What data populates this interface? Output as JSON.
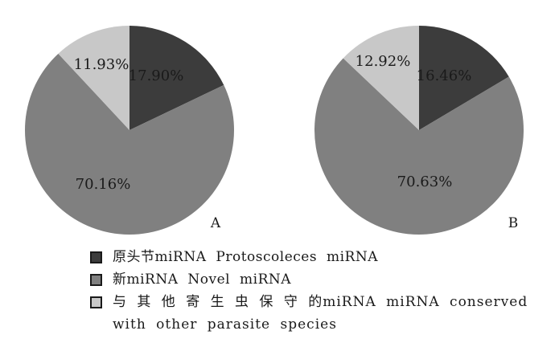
{
  "chart_data": [
    {
      "type": "pie",
      "label": "A",
      "slices": [
        {
          "name": "原头节miRNA Protoscoleces miRNA",
          "value": 17.9,
          "label": "17.90%",
          "color": "#3c3c3c"
        },
        {
          "name": "新miRNA Novel miRNA",
          "value": 70.16,
          "label": "70.16%",
          "color": "#808080"
        },
        {
          "name": "与其他寄生虫保守的miRNA miRNA conserved with other parasite species",
          "value": 11.93,
          "label": "11.93%",
          "color": "#c8c8c8"
        }
      ]
    },
    {
      "type": "pie",
      "label": "B",
      "slices": [
        {
          "name": "原头节miRNA Protoscoleces miRNA",
          "value": 16.46,
          "label": "16.46%",
          "color": "#3c3c3c"
        },
        {
          "name": "新miRNA Novel miRNA",
          "value": 70.63,
          "label": "70.63%",
          "color": "#808080"
        },
        {
          "name": "与其他寄生虫保守的miRNA miRNA conserved with other parasite species",
          "value": 12.92,
          "label": "12.92%",
          "color": "#c8c8c8"
        }
      ]
    }
  ],
  "legend": [
    {
      "text": "原头节miRNA Protoscoleces miRNA",
      "color": "#3c3c3c"
    },
    {
      "text": "新miRNA Novel miRNA",
      "color": "#808080"
    },
    {
      "text": "与 其 他 寄 生 虫 保 守 的miRNA miRNA conserved with other parasite species",
      "color": "#c8c8c8"
    }
  ]
}
